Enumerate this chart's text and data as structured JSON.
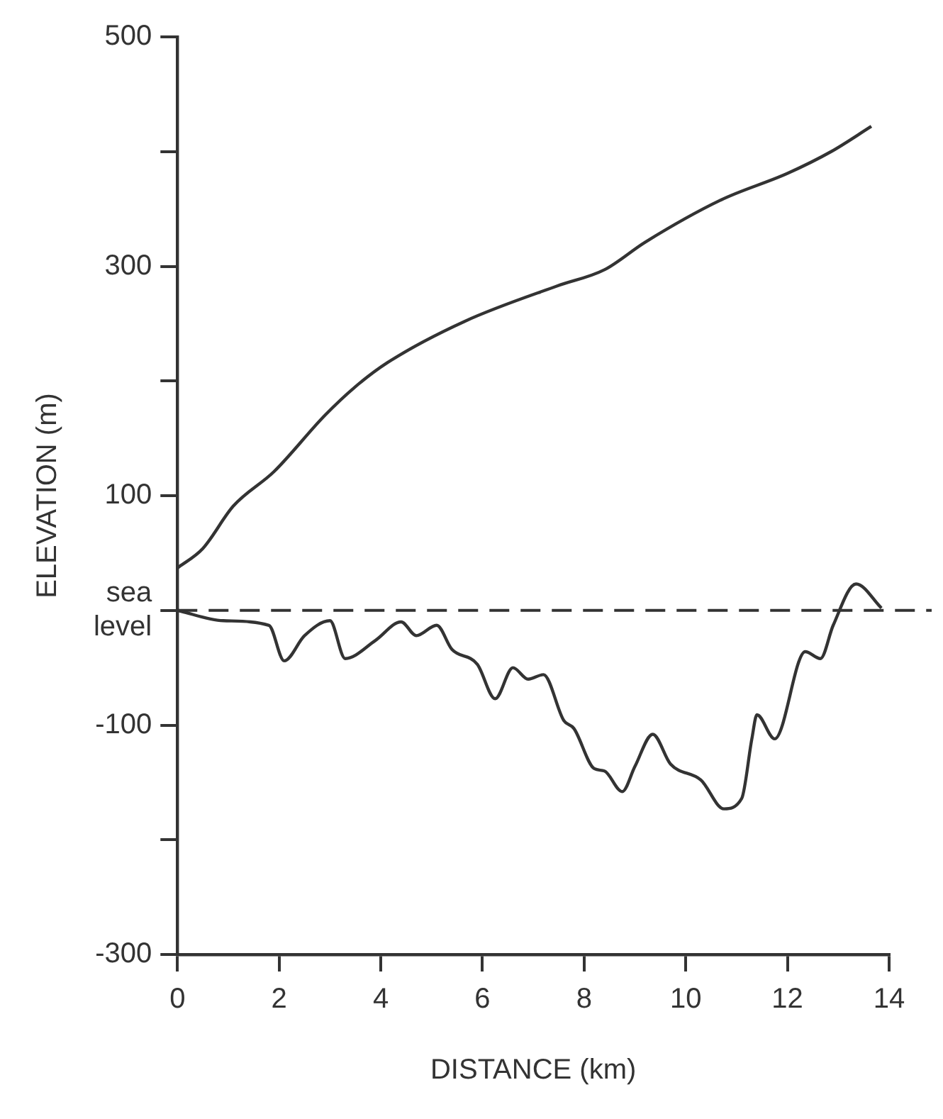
{
  "chart_data": {
    "type": "line",
    "xlabel": "DISTANCE (km)",
    "ylabel": "ELEVATION (m)",
    "xlim": [
      0,
      14
    ],
    "xticks": [
      0,
      2,
      4,
      6,
      8,
      10,
      12,
      14
    ],
    "ylim": [
      -300,
      500
    ],
    "yticks": [
      {
        "value": -300,
        "label": "-300"
      },
      {
        "value": -200,
        "label": null
      },
      {
        "value": -100,
        "label": "-100"
      },
      {
        "value": 0,
        "label": "sea level"
      },
      {
        "value": 100,
        "label": "100"
      },
      {
        "value": 200,
        "label": null
      },
      {
        "value": 300,
        "label": "300"
      },
      {
        "value": 400,
        "label": null
      },
      {
        "value": 500,
        "label": "500"
      }
    ],
    "marker": "none",
    "line_style": "solid",
    "series": [
      {
        "color": "#333333",
        "x": [
          0,
          0.5,
          1.1,
          1.9,
          2.9,
          3.5,
          4.13,
          5.65,
          7.48,
          8.4,
          9.2,
          10.7,
          12.0,
          12.86,
          13.65
        ],
        "values": [
          37,
          54,
          91,
          121,
          170,
          195,
          216,
          252,
          283,
          297,
          321,
          358,
          381,
          400,
          422
        ]
      },
      {
        "color": "#333333",
        "x": [
          0,
          0.9,
          1.8,
          2.1,
          2.5,
          3.0,
          3.3,
          3.9,
          4.4,
          4.7,
          5.1,
          5.4,
          5.9,
          6.25,
          6.6,
          6.9,
          7.2,
          7.6,
          7.8,
          8.2,
          8.4,
          8.75,
          9.0,
          9.35,
          9.7,
          10.3,
          10.75,
          11.1,
          11.3,
          11.4,
          11.75,
          12.35,
          12.65,
          12.9,
          13.35,
          13.85
        ],
        "values": [
          0,
          -9,
          -13,
          -44,
          -22,
          -9,
          -42,
          -26,
          -10,
          -22,
          -13,
          -34,
          -47,
          -77,
          -50,
          -60,
          -56,
          -96,
          -103,
          -138,
          -140,
          -158,
          -136,
          -108,
          -134,
          -148,
          -173,
          -164,
          -112,
          -91,
          -112,
          -36,
          -42,
          -13,
          23,
          2
        ]
      }
    ],
    "ref_lines": [
      {
        "axis": "y",
        "value": 0,
        "color": "#333333",
        "line_style": "dashed"
      }
    ]
  }
}
